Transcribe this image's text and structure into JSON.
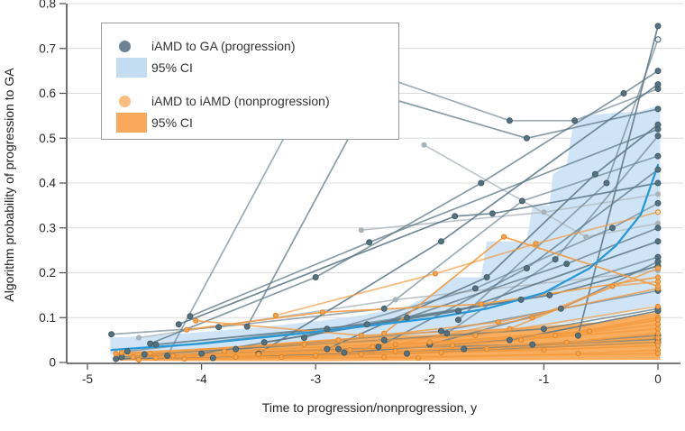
{
  "colors": {
    "progression_line": "#5d7987",
    "progression_dot": "#56727f",
    "progression_dot_stroke": "#3f5a68",
    "progression_ci": "#cbe2f5",
    "nonprogression_line": "#f39a3e",
    "nonprogression_dot": "#f6a44f",
    "nonprogression_dot_stroke": "#df8526",
    "nonprogression_ci": "#f8a44c",
    "mean_line": "#2899d6",
    "faded_line": "#b7c0c6",
    "faded_dot": "#a9b4ba",
    "legend_progression_dot": "#6d8395",
    "legend_progression_ci": "#c3dcf1",
    "legend_nonprogression_dot": "#f9bd7f",
    "legend_nonprogression_ci": "#f9a85c",
    "grid": "#dcdcdc",
    "axis": "#4d4d4d",
    "tick_text": "#262626"
  },
  "chart_data": {
    "type": "line",
    "title": "",
    "xlabel": "Time to progression/nonprogression, y",
    "ylabel": "Algorithm probability of progression to GA",
    "xlim": [
      -5.3,
      0.25
    ],
    "ylim": [
      0,
      0.8
    ],
    "grid": true,
    "legend_position": "upper-left",
    "x_ticks": [
      {
        "v": -5,
        "label": "-5"
      },
      {
        "v": -4,
        "label": "-4"
      },
      {
        "v": -3,
        "label": "-3"
      },
      {
        "v": -2,
        "label": "-2"
      },
      {
        "v": -1,
        "label": "-1"
      },
      {
        "v": 0,
        "label": "0"
      }
    ],
    "y_ticks": [
      {
        "v": 0,
        "label": "0"
      },
      {
        "v": 0.1,
        "label": "0.1"
      },
      {
        "v": 0.2,
        "label": "0.2"
      },
      {
        "v": 0.3,
        "label": "0.3"
      },
      {
        "v": 0.4,
        "label": "0.4"
      },
      {
        "v": 0.5,
        "label": "0.5"
      },
      {
        "v": 0.6,
        "label": "0.6"
      },
      {
        "v": 0.7,
        "label": "0.7"
      },
      {
        "v": 0.8,
        "label": "0.8"
      }
    ],
    "legend": [
      {
        "swatch": "dot",
        "group": "progression",
        "label": "iAMD to GA (progression)"
      },
      {
        "swatch": "rect",
        "group": "progression_ci",
        "label": "95% CI"
      },
      {
        "swatch": "dot",
        "group": "nonprogression",
        "label": "iAMD to iAMD (nonprogression)"
      },
      {
        "swatch": "rect",
        "group": "nonprogression_ci",
        "label": "95% CI"
      }
    ],
    "ci_bands": [
      {
        "name": "progression_95ci",
        "upper": [
          [
            -4.8,
            0.055
          ],
          [
            -4.4,
            0.06
          ],
          [
            -4.0,
            0.068
          ],
          [
            -3.5,
            0.078
          ],
          [
            -3.0,
            0.092
          ],
          [
            -2.6,
            0.105
          ],
          [
            -2.2,
            0.125
          ],
          [
            -2.0,
            0.15
          ],
          [
            -1.8,
            0.19
          ],
          [
            -1.55,
            0.19
          ],
          [
            -1.5,
            0.27
          ],
          [
            -1.15,
            0.27
          ],
          [
            -1.1,
            0.35
          ],
          [
            -0.95,
            0.35
          ],
          [
            -0.92,
            0.42
          ],
          [
            -0.8,
            0.44
          ],
          [
            -0.75,
            0.52
          ],
          [
            -0.65,
            0.55
          ],
          [
            -0.4,
            0.556
          ],
          [
            -0.15,
            0.56
          ],
          [
            0,
            0.572
          ],
          [
            0.02,
            0.572
          ]
        ],
        "lower": [
          [
            -4.8,
            0.018
          ],
          [
            -4.4,
            0.02
          ],
          [
            -4.0,
            0.024
          ],
          [
            -3.5,
            0.028
          ],
          [
            -3.0,
            0.035
          ],
          [
            -2.5,
            0.042
          ],
          [
            -2.0,
            0.05
          ],
          [
            -1.5,
            0.062
          ],
          [
            -1.0,
            0.08
          ],
          [
            -0.5,
            0.1
          ],
          [
            0,
            0.128
          ],
          [
            0.02,
            0.13
          ]
        ]
      },
      {
        "name": "nonprogression_95ci",
        "upper": [
          [
            -4.75,
            0.022
          ],
          [
            -4.2,
            0.028
          ],
          [
            -3.6,
            0.038
          ],
          [
            -3.0,
            0.05
          ],
          [
            -2.5,
            0.058
          ],
          [
            -2.0,
            0.062
          ],
          [
            -1.6,
            0.07
          ],
          [
            -1.2,
            0.078
          ],
          [
            -0.8,
            0.085
          ],
          [
            -0.5,
            0.09
          ],
          [
            -0.3,
            0.1
          ],
          [
            -0.1,
            0.108
          ],
          [
            0,
            0.112
          ],
          [
            0.02,
            0.115
          ]
        ],
        "lower": [
          [
            -4.75,
            0.004
          ],
          [
            -4.0,
            0.003
          ],
          [
            -3.0,
            0.003
          ],
          [
            -2.0,
            0.004
          ],
          [
            -1.0,
            0.005
          ],
          [
            0,
            0.006
          ],
          [
            0.02,
            0.006
          ]
        ]
      }
    ],
    "series": [
      {
        "group": "faded",
        "points": [
          [
            -2.6,
            0.295
          ],
          [
            -1.0,
            0.335
          ],
          [
            0,
            0.375
          ]
        ]
      },
      {
        "group": "faded",
        "points": [
          [
            -2.05,
            0.485
          ],
          [
            -0.63,
            0.28
          ],
          [
            0,
            0.31
          ]
        ]
      },
      {
        "group": "faded",
        "points": [
          [
            -4.55,
            0.055
          ],
          [
            -2.3,
            0.14
          ],
          [
            0,
            0.205
          ]
        ]
      },
      {
        "group": "progression",
        "points": [
          [
            -4.79,
            0.063
          ],
          [
            -3.85,
            0.079
          ],
          [
            -2.4,
            0.12
          ],
          [
            -1.19,
            0.36
          ],
          [
            0,
            0.46
          ]
        ]
      },
      {
        "group": "progression",
        "points": [
          [
            -4.1,
            0.103
          ],
          [
            -2.53,
            0.268
          ],
          [
            0,
            0.52
          ]
        ]
      },
      {
        "group": "progression",
        "points": [
          [
            -0.7,
            0.06
          ],
          [
            0,
            0.75
          ]
        ]
      },
      {
        "group": "progression",
        "points": [
          [
            -1.75,
            0.095
          ],
          [
            -0.45,
            0.4
          ],
          [
            0,
            0.72
          ]
        ],
        "open_end": true
      },
      {
        "group": "progression",
        "points": [
          [
            -4.45,
            0.042
          ],
          [
            -3.0,
            0.19
          ],
          [
            -1.55,
            0.4
          ],
          [
            -0.3,
            0.6
          ],
          [
            0,
            0.65
          ]
        ]
      },
      {
        "group": "progression",
        "points": [
          [
            -3.5,
            0.02
          ],
          [
            -1.9,
            0.27
          ],
          [
            0,
            0.62
          ]
        ]
      },
      {
        "group": "progression",
        "points": [
          [
            -4.3,
            0.015
          ],
          [
            -2.9,
            0.68
          ],
          [
            -1.3,
            0.539
          ],
          [
            -0.73,
            0.539
          ],
          [
            0,
            0.61
          ]
        ]
      },
      {
        "group": "progression",
        "points": [
          [
            -3.6,
            0.08
          ],
          [
            -2.5,
            0.6
          ],
          [
            -1.15,
            0.5
          ],
          [
            0,
            0.565
          ]
        ]
      },
      {
        "group": "progression",
        "points": [
          [
            -2.9,
            0.03
          ],
          [
            -1.5,
            0.19
          ],
          [
            -0.55,
            0.42
          ],
          [
            0,
            0.53
          ]
        ]
      },
      {
        "group": "progression",
        "points": [
          [
            -1.85,
            0.065
          ],
          [
            -0.9,
            0.23
          ],
          [
            0,
            0.505
          ]
        ]
      },
      {
        "group": "progression",
        "points": [
          [
            -2.45,
            0.035
          ],
          [
            -1.15,
            0.21
          ],
          [
            0,
            0.43
          ]
        ]
      },
      {
        "group": "progression",
        "points": [
          [
            -4.2,
            0.085
          ],
          [
            -1.78,
            0.326
          ],
          [
            -1.45,
            0.332
          ],
          [
            0,
            0.4
          ]
        ]
      },
      {
        "group": "progression",
        "points": [
          [
            -3.1,
            0.055
          ],
          [
            -1.6,
            0.165
          ],
          [
            -0.4,
            0.3
          ],
          [
            0,
            0.355
          ]
        ]
      },
      {
        "group": "progression",
        "points": [
          [
            -4.0,
            0.02
          ],
          [
            -2.2,
            0.1
          ],
          [
            -0.8,
            0.22
          ],
          [
            0,
            0.3
          ]
        ]
      },
      {
        "group": "progression",
        "points": [
          [
            -3.45,
            0.045
          ],
          [
            -1.75,
            0.115
          ],
          [
            0,
            0.27
          ]
        ]
      },
      {
        "group": "progression",
        "points": [
          [
            -4.65,
            0.025
          ],
          [
            -2.9,
            0.075
          ],
          [
            -1.2,
            0.14
          ],
          [
            0,
            0.235
          ]
        ]
      },
      {
        "group": "progression",
        "points": [
          [
            -2.0,
            0.04
          ],
          [
            -0.85,
            0.12
          ],
          [
            0,
            0.225
          ]
        ]
      },
      {
        "group": "progression",
        "points": [
          [
            -4.4,
            0.04
          ],
          [
            -2.55,
            0.085
          ],
          [
            -0.95,
            0.15
          ],
          [
            0,
            0.215
          ]
        ]
      },
      {
        "group": "progression",
        "points": [
          [
            -3.7,
            0.03
          ],
          [
            -1.9,
            0.07
          ],
          [
            0,
            0.16
          ]
        ]
      },
      {
        "group": "progression",
        "points": [
          [
            -4.5,
            0.018
          ],
          [
            -2.4,
            0.05
          ],
          [
            -1.0,
            0.075
          ],
          [
            0,
            0.12
          ]
        ]
      },
      {
        "group": "progression",
        "points": [
          [
            -2.75,
            0.022
          ],
          [
            -1.3,
            0.05
          ],
          [
            0,
            0.115
          ]
        ]
      },
      {
        "group": "progression",
        "points": [
          [
            -4.7,
            0.012
          ],
          [
            -2.8,
            0.03
          ],
          [
            -1.1,
            0.04
          ],
          [
            0,
            0.06
          ]
        ]
      },
      {
        "group": "progression",
        "points": [
          [
            -3.9,
            0.01
          ],
          [
            -1.7,
            0.03
          ],
          [
            0,
            0.052
          ]
        ]
      },
      {
        "group": "progression",
        "points": [
          [
            -4.75,
            0.008
          ],
          [
            -2.2,
            0.02
          ],
          [
            0,
            0.045
          ]
        ]
      },
      {
        "group": "nonprogression",
        "points": [
          [
            -3.35,
            0.105
          ],
          [
            -1.95,
            0.198
          ],
          [
            -1.07,
            0.265
          ],
          [
            0,
            0.335
          ]
        ],
        "open_end": true
      },
      {
        "group": "nonprogression",
        "points": [
          [
            -4.05,
            0.093
          ],
          [
            -2.6,
            0.06
          ],
          [
            -1.3,
            0.075
          ],
          [
            0,
            0.21
          ]
        ]
      },
      {
        "group": "nonprogression",
        "points": [
          [
            -4.13,
            0.073
          ],
          [
            -2.94,
            0.112
          ],
          [
            -1.55,
            0.13
          ],
          [
            0,
            0.19
          ]
        ]
      },
      {
        "group": "nonprogression",
        "points": [
          [
            -2.3,
            0.04
          ],
          [
            -1.1,
            0.1
          ],
          [
            -0.4,
            0.17
          ],
          [
            0,
            0.18
          ]
        ]
      },
      {
        "group": "nonprogression",
        "points": [
          [
            -4.45,
            0.02
          ],
          [
            -2.8,
            0.05
          ],
          [
            -1.4,
            0.09
          ],
          [
            0,
            0.165
          ]
        ]
      },
      {
        "group": "nonprogression",
        "points": [
          [
            -2.4,
            0.065
          ],
          [
            -1.35,
            0.28
          ],
          [
            0,
            0.17
          ]
        ]
      },
      {
        "group": "nonprogression",
        "points": [
          [
            -4.7,
            0.022
          ],
          [
            -3.1,
            0.04
          ],
          [
            -1.6,
            0.06
          ],
          [
            0,
            0.125
          ]
        ]
      },
      {
        "group": "nonprogression",
        "points": [
          [
            -4.25,
            0.015
          ],
          [
            -2.5,
            0.035
          ],
          [
            -0.9,
            0.06
          ],
          [
            0,
            0.1
          ]
        ]
      },
      {
        "group": "nonprogression",
        "points": [
          [
            -3.8,
            0.025
          ],
          [
            -2.0,
            0.045
          ],
          [
            -0.6,
            0.07
          ],
          [
            0,
            0.095
          ]
        ]
      },
      {
        "group": "nonprogression",
        "points": [
          [
            -4.6,
            0.012
          ],
          [
            -2.7,
            0.028
          ],
          [
            -1.2,
            0.05
          ],
          [
            0,
            0.085
          ]
        ]
      },
      {
        "group": "nonprogression",
        "points": [
          [
            -3.5,
            0.018
          ],
          [
            -1.8,
            0.038
          ],
          [
            0,
            0.075
          ]
        ]
      },
      {
        "group": "nonprogression",
        "points": [
          [
            -4.4,
            0.01
          ],
          [
            -2.3,
            0.025
          ],
          [
            -0.8,
            0.045
          ],
          [
            0,
            0.065
          ]
        ]
      },
      {
        "group": "nonprogression",
        "points": [
          [
            -3.0,
            0.015
          ],
          [
            -1.5,
            0.03
          ],
          [
            0,
            0.055
          ]
        ]
      },
      {
        "group": "nonprogression",
        "points": [
          [
            -4.75,
            0.02
          ],
          [
            -3.3,
            0.012
          ],
          [
            -1.9,
            0.022
          ],
          [
            0,
            0.045
          ]
        ]
      },
      {
        "group": "nonprogression",
        "points": [
          [
            -4.15,
            0.008
          ],
          [
            -2.6,
            0.018
          ],
          [
            -1.0,
            0.028
          ],
          [
            0,
            0.038
          ]
        ]
      },
      {
        "group": "nonprogression",
        "points": [
          [
            -3.7,
            0.012
          ],
          [
            -2.1,
            0.01
          ],
          [
            -0.7,
            0.02
          ],
          [
            0,
            0.028
          ]
        ]
      },
      {
        "group": "nonprogression",
        "points": [
          [
            -4.55,
            0.006
          ],
          [
            -2.4,
            0.012
          ],
          [
            0,
            0.02
          ]
        ]
      },
      {
        "group": "mean",
        "points": [
          [
            -4.79,
            0.028
          ],
          [
            -4.0,
            0.042
          ],
          [
            -3.0,
            0.068
          ],
          [
            -2.0,
            0.098
          ],
          [
            -1.5,
            0.12
          ],
          [
            -1.0,
            0.155
          ],
          [
            -0.6,
            0.21
          ],
          [
            -0.37,
            0.26
          ],
          [
            -0.15,
            0.33
          ],
          [
            0,
            0.44
          ]
        ],
        "dots": false
      }
    ]
  }
}
